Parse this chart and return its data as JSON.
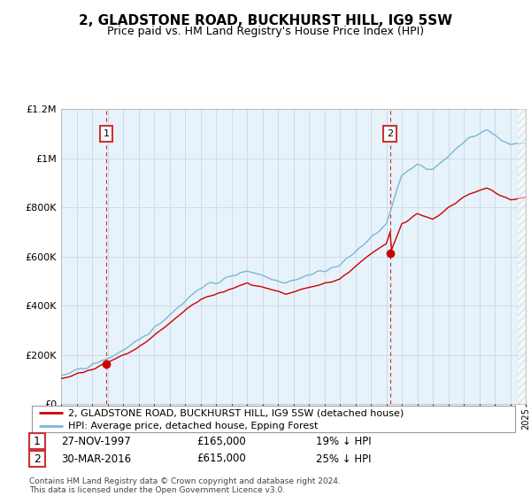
{
  "title": "2, GLADSTONE ROAD, BUCKHURST HILL, IG9 5SW",
  "subtitle": "Price paid vs. HM Land Registry's House Price Index (HPI)",
  "legend_line1": "2, GLADSTONE ROAD, BUCKHURST HILL, IG9 5SW (detached house)",
  "legend_line2": "HPI: Average price, detached house, Epping Forest",
  "sale1_date": "27-NOV-1997",
  "sale1_price": "£165,000",
  "sale1_hpi": "19% ↓ HPI",
  "sale2_date": "30-MAR-2016",
  "sale2_price": "£615,000",
  "sale2_hpi": "25% ↓ HPI",
  "footnote": "Contains HM Land Registry data © Crown copyright and database right 2024.\nThis data is licensed under the Open Government Licence v3.0.",
  "hpi_color": "#7ab8d4",
  "price_color": "#cc0000",
  "plot_bg": "#e8f2fa",
  "box_color": "#cc3333",
  "sale1_year": 1997.92,
  "sale2_year": 2016.25,
  "sale1_price_val": 165000,
  "sale2_price_val": 615000,
  "ylim": [
    0,
    1200000
  ],
  "xlim_start": 1995,
  "xlim_end": 2025
}
